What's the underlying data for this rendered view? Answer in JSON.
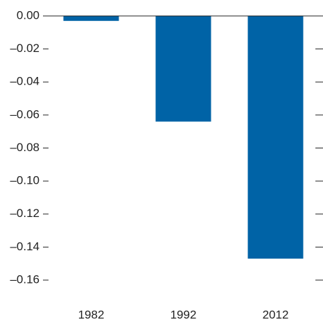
{
  "chart_data": {
    "type": "bar",
    "categories": [
      "1982",
      "1992",
      "2012"
    ],
    "values": [
      -0.003,
      -0.064,
      -0.147
    ],
    "color": "#0063a6",
    "ylim": [
      -0.16,
      0
    ],
    "yticks": [
      {
        "value": 0,
        "label": "0.00"
      },
      {
        "value": -0.02,
        "label": "–0.02"
      },
      {
        "value": -0.04,
        "label": "–0.04"
      },
      {
        "value": -0.06,
        "label": "–0.06"
      },
      {
        "value": -0.08,
        "label": "–0.08"
      },
      {
        "value": -0.1,
        "label": "–0.10"
      },
      {
        "value": -0.12,
        "label": "–0.12"
      },
      {
        "value": -0.14,
        "label": "–0.14"
      },
      {
        "value": -0.16,
        "label": "–0.16"
      }
    ]
  }
}
